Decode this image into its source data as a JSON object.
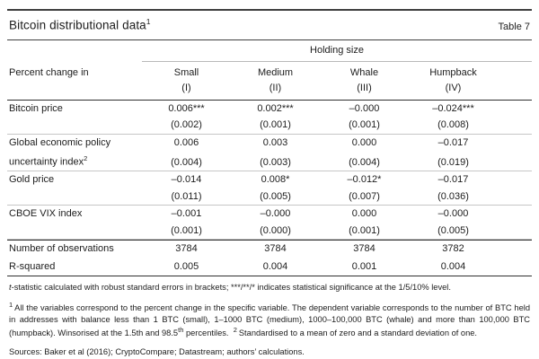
{
  "header": {
    "title": "Bitcoin distributional data",
    "title_sup": "1",
    "table_label": "Table 7"
  },
  "table": {
    "group_header": "Holding size",
    "stub_header": "Percent change in",
    "columns": [
      {
        "name": "Small",
        "numeral": "(I)"
      },
      {
        "name": "Medium",
        "numeral": "(II)"
      },
      {
        "name": "Whale",
        "numeral": "(III)"
      },
      {
        "name": "Humpback",
        "numeral": "(IV)"
      }
    ],
    "rows": [
      {
        "label": "Bitcoin price",
        "coefs": [
          "0.006***",
          "0.002***",
          "–0.000",
          "–0.024***"
        ],
        "ses": [
          "(0.002)",
          "(0.001)",
          "(0.001)",
          "(0.008)"
        ]
      },
      {
        "label": "Global economic policy",
        "label2": "uncertainty index",
        "label2_sup": "2",
        "coefs": [
          "0.006",
          "0.003",
          "0.000",
          "–0.017"
        ],
        "ses": [
          "(0.004)",
          "(0.003)",
          "(0.004)",
          "(0.019)"
        ]
      },
      {
        "label": "Gold price",
        "coefs": [
          "–0.014",
          "0.008*",
          "–0.012*",
          "–0.017"
        ],
        "ses": [
          "(0.011)",
          "(0.005)",
          "(0.007)",
          "(0.036)"
        ]
      },
      {
        "label": "CBOE VIX index",
        "coefs": [
          "–0.001",
          "–0.000",
          "0.000",
          "–0.000"
        ],
        "ses": [
          "(0.001)",
          "(0.000)",
          "(0.001)",
          "(0.005)"
        ]
      }
    ],
    "summary": [
      {
        "label": "Number of observations",
        "values": [
          "3784",
          "3784",
          "3784",
          "3782"
        ]
      },
      {
        "label": "R-squared",
        "values": [
          "0.005",
          "0.004",
          "0.001",
          "0.004"
        ]
      }
    ]
  },
  "notes": {
    "tstat_italic": "t",
    "tstat_rest": "-statistic calculated with robust standard errors in brackets; ***/**/* indicates statistical significance at the 1/5/10% level.",
    "footnote1_marker": "1",
    "footnote1_a": "All the variables correspond to the percent change in the specific variable. The dependent variable corresponds to the number of BTC held in addresses with balance less than 1 BTC (small), 1–1000 BTC (medium), 1000–100,000 BTC (whale) and more than 100,000 BTC (humpback). Winsorised at the 1.5th and 98.5",
    "footnote1_sup": "th",
    "footnote1_b": " percentiles.",
    "footnote2_marker": "2",
    "footnote2_text": "Standardised to a mean of zero and a standard deviation of one.",
    "sources": "Sources: Baker et al (2016); CryptoCompare; Datastream; authors’ calculations."
  }
}
